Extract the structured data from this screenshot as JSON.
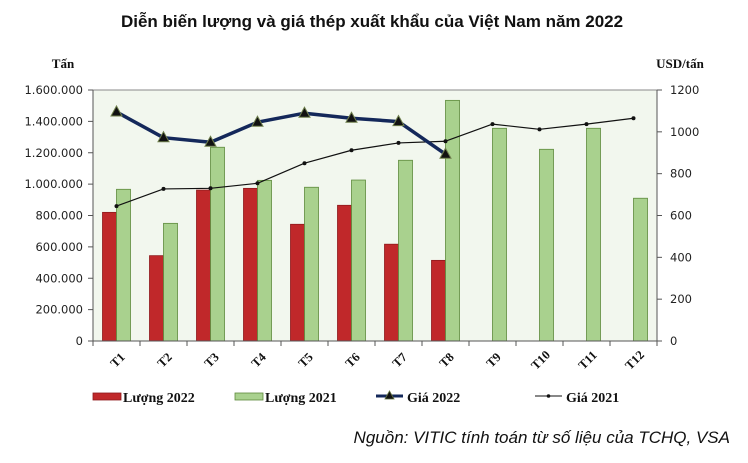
{
  "chart_data": {
    "type": "bar",
    "title": "Diễn biến lượng và giá thép xuất khẩu của Việt Nam năm 2022",
    "ylabel_left": "Tấn",
    "ylabel_right": "USD/tấn",
    "categories": [
      "T1",
      "T2",
      "T3",
      "T4",
      "T5",
      "T6",
      "T7",
      "T8",
      "T9",
      "T10",
      "T11",
      "T12"
    ],
    "ylim_left": [
      0,
      1600000
    ],
    "yticks_left": [
      "0",
      "200.000",
      "400.000",
      "600.000",
      "800.000",
      "1.000.000",
      "1.200.000",
      "1.400.000",
      "1.600.000"
    ],
    "ylim_right": [
      0,
      1200
    ],
    "yticks_right": [
      "0",
      "200",
      "400",
      "600",
      "800",
      "1000",
      "1200"
    ],
    "series": [
      {
        "name": "Lượng 2022",
        "type": "bar",
        "axis": "left",
        "color": "#C0282A",
        "values": [
          820000,
          544000,
          962000,
          973000,
          744000,
          865000,
          617000,
          514000,
          null,
          null,
          null,
          null
        ]
      },
      {
        "name": "Lượng 2021",
        "type": "bar",
        "axis": "left",
        "color": "#A9D18E",
        "values": [
          967000,
          750000,
          1235000,
          1024000,
          980000,
          1026000,
          1152000,
          1534000,
          1356000,
          1222000,
          1356000,
          910000
        ]
      },
      {
        "name": "Giá 2022",
        "type": "line",
        "axis": "right",
        "color": "#14285A",
        "marker": "triangle",
        "values": [
          1095,
          972,
          950,
          1046,
          1089,
          1065,
          1049,
          893,
          null,
          null,
          null,
          null
        ]
      },
      {
        "name": "Giá 2021",
        "type": "line",
        "axis": "right",
        "color": "#111111",
        "marker": "dot",
        "values": [
          645,
          727,
          730,
          754,
          850,
          912,
          947,
          955,
          1037,
          1012,
          1037,
          1065
        ]
      }
    ],
    "grid": false,
    "legend_position": "bottom",
    "source": "Nguồn: VITIC tính toán từ số liệu của TCHQ, VSA"
  }
}
